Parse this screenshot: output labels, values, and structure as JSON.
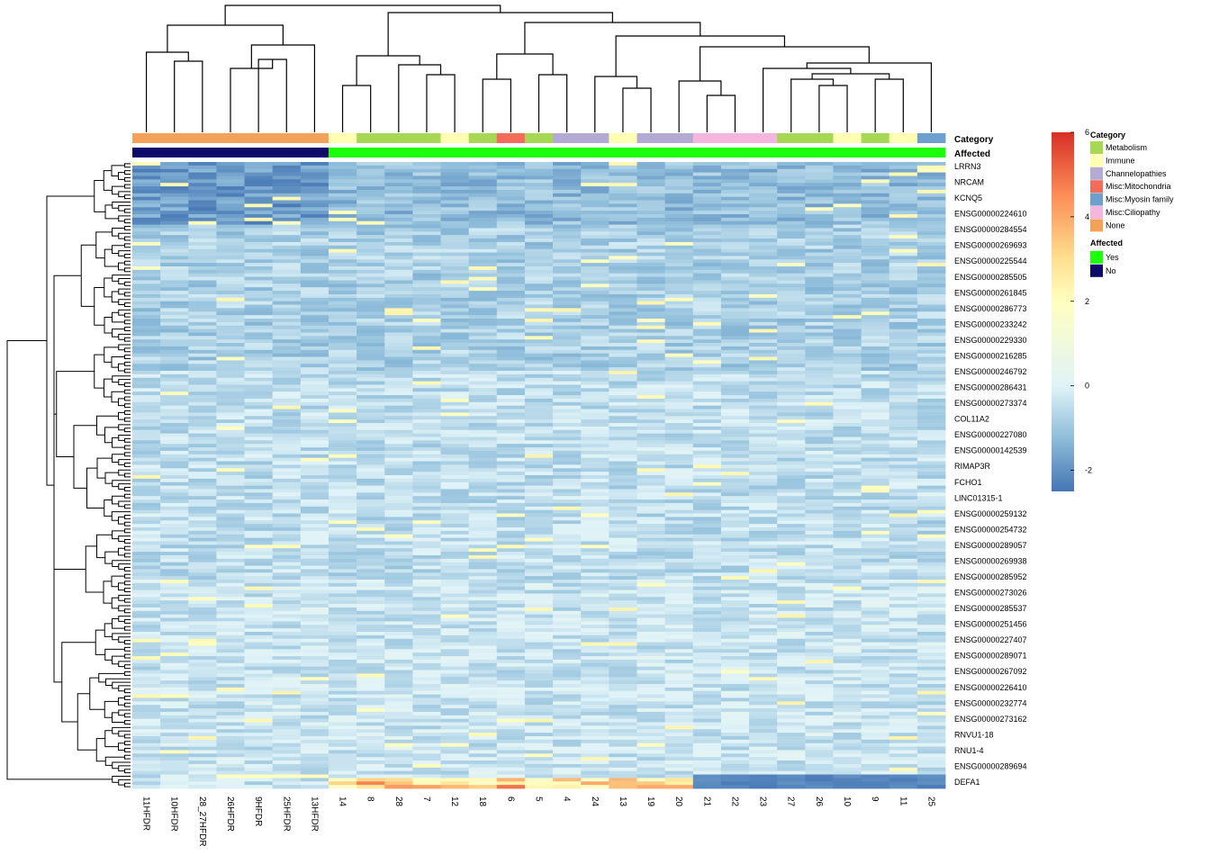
{
  "chart_data": {
    "type": "heatmap",
    "title": "",
    "columns": [
      "11HFDR",
      "10HFDR",
      "28_27HFDR",
      "26HFDR",
      "9HFDR",
      "25HFDR",
      "13HFDR",
      "14",
      "8",
      "28",
      "7",
      "12",
      "18",
      "6",
      "5",
      "4",
      "24",
      "13",
      "19",
      "20",
      "21",
      "22",
      "23",
      "27",
      "26",
      "10",
      "9",
      "11",
      "25"
    ],
    "annotations": {
      "category_label": "Category",
      "affected_label": "Affected",
      "category": [
        "None",
        "None",
        "None",
        "None",
        "None",
        "None",
        "None",
        "Immune",
        "Metabolism",
        "Metabolism",
        "Metabolism",
        "Immune",
        "Metabolism",
        "Misc:Mitochondria",
        "Metabolism",
        "Channelopathies",
        "Channelopathies",
        "Immune",
        "Channelopathies",
        "Channelopathies",
        "Misc:Ciliopathy",
        "Misc:Ciliopathy",
        "Misc:Ciliopathy",
        "Metabolism",
        "Metabolism",
        "Immune",
        "Metabolism",
        "Immune",
        "Misc:Myosin family"
      ],
      "affected": [
        "No",
        "No",
        "No",
        "No",
        "No",
        "No",
        "No",
        "Yes",
        "Yes",
        "Yes",
        "Yes",
        "Yes",
        "Yes",
        "Yes",
        "Yes",
        "Yes",
        "Yes",
        "Yes",
        "Yes",
        "Yes",
        "Yes",
        "Yes",
        "Yes",
        "Yes",
        "Yes",
        "Yes",
        "Yes",
        "Yes",
        "Yes"
      ]
    },
    "legend": {
      "category_title": "Category",
      "category_items": [
        {
          "label": "Metabolism",
          "color": "#a6d854"
        },
        {
          "label": "Immune",
          "color": "#ffffb3"
        },
        {
          "label": "Channelopathies",
          "color": "#b3abd4"
        },
        {
          "label": "Misc:Mitochondria",
          "color": "#f26b5b"
        },
        {
          "label": "Misc:Myosin family",
          "color": "#6d9fcf"
        },
        {
          "label": "Misc:Ciliopathy",
          "color": "#f4b6dd"
        },
        {
          "label": "None",
          "color": "#f4a259"
        }
      ],
      "affected_title": "Affected",
      "affected_items": [
        {
          "label": "Yes",
          "color": "#1cff0a"
        },
        {
          "label": "No",
          "color": "#0d0a6b"
        }
      ]
    },
    "colorscale": {
      "range": [
        -2.5,
        6
      ],
      "ticks": [
        6,
        4,
        2,
        0,
        -2
      ],
      "colors": [
        "#4575b4",
        "#91bfdb",
        "#e0f3f8",
        "#ffffbf",
        "#fee090",
        "#fc8d59",
        "#d73027"
      ],
      "stops": [
        -2.5,
        -1.2,
        0,
        2,
        3,
        4.5,
        6
      ]
    },
    "visible_row_labels": [
      "LRRN3",
      "NRCAM",
      "KCNQ5",
      "ENSG00000224610",
      "ENSG00000284554",
      "ENSG00000269693",
      "ENSG00000225544",
      "ENSG00000285505",
      "ENSG00000261845",
      "ENSG00000286773",
      "ENSG00000233242",
      "ENSG00000229330",
      "ENSG00000216285",
      "ENSG00000246792",
      "ENSG00000286431",
      "ENSG00000273374",
      "COL11A2",
      "ENSG00000227080",
      "ENSG00000142539",
      "RIMAP3R",
      "FCHO1",
      "LINC01315-1",
      "ENSG00000259132",
      "ENSG00000254732",
      "ENSG00000289057",
      "ENSG00000269938",
      "ENSG00000285952",
      "ENSG00000273026",
      "ENSG00000285537",
      "ENSG00000251456",
      "ENSG00000227407",
      "ENSG00000289071",
      "ENSG00000267092",
      "ENSG00000226410",
      "ENSG00000232774",
      "ENSG00000273162",
      "RNVU1-18",
      "RNU1-4",
      "ENSG00000289694",
      "DEFA1"
    ]
  }
}
